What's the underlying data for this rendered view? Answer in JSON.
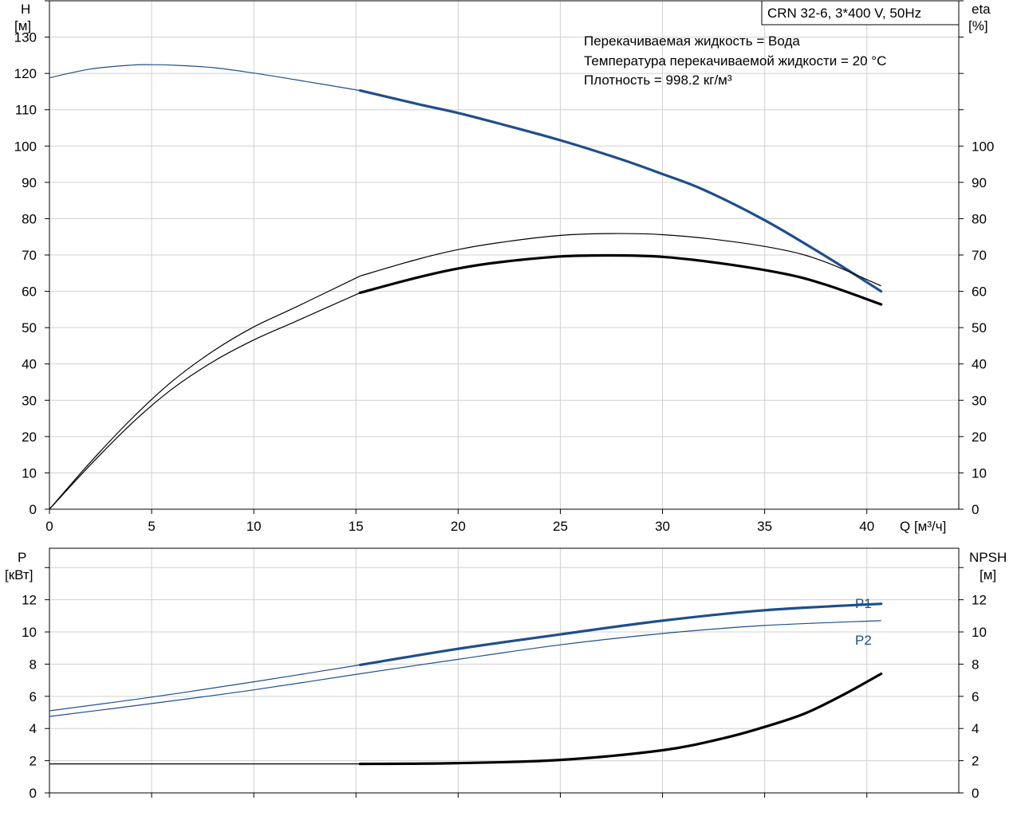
{
  "title_box": "CRN 32-6, 3*400 V, 50Hz",
  "info": {
    "line1": "Перекачиваемая жидкость = Вода",
    "line2": "Температура перекачиваемой жидкости = 20 °C",
    "line3": "Плотность = 998.2 кг/м³"
  },
  "colors": {
    "blue": "#1f4e8c",
    "black": "#000000",
    "grid": "#d0d0d0"
  },
  "chart_data": [
    {
      "type": "line",
      "name": "head-efficiency",
      "x_label": "Q [м³/ч]",
      "left_axis": {
        "label_top": "H",
        "label_unit": "[м]",
        "ticks": [
          0,
          10,
          20,
          30,
          40,
          50,
          60,
          70,
          80,
          90,
          100,
          110,
          120,
          130
        ],
        "range": [
          0,
          140
        ]
      },
      "right_axis": {
        "label_top": "eta",
        "label_unit": "[%]",
        "ticks": [
          0,
          10,
          20,
          30,
          40,
          50,
          60,
          70,
          80,
          90,
          100
        ],
        "range": [
          0,
          140
        ]
      },
      "x_ticks": [
        0,
        5,
        10,
        15,
        20,
        25,
        30,
        35,
        40
      ],
      "x_range": [
        0,
        44.5
      ],
      "series": [
        {
          "id": "H",
          "axis": "left",
          "color": "#1f4e8c",
          "thin": [
            [
              0,
              118.8
            ],
            [
              2,
              121.2
            ],
            [
              4,
              122.3
            ],
            [
              5,
              122.4
            ],
            [
              6,
              122.3
            ],
            [
              8,
              121.6
            ],
            [
              10,
              120.1
            ],
            [
              12,
              118.3
            ],
            [
              15.2,
              115.3
            ]
          ],
          "thick": [
            [
              15.2,
              115.3
            ],
            [
              18,
              111.6
            ],
            [
              20,
              109.1
            ],
            [
              22,
              106.2
            ],
            [
              25,
              101.6
            ],
            [
              28,
              96.3
            ],
            [
              30,
              92.3
            ],
            [
              32,
              88.0
            ],
            [
              35,
              79.6
            ],
            [
              38,
              69.6
            ],
            [
              40.7,
              60.0
            ]
          ]
        },
        {
          "id": "eta_pump",
          "axis": "right",
          "color": "#000000",
          "thin": [
            [
              0,
              0
            ],
            [
              2,
              12.9
            ],
            [
              4,
              24.8
            ],
            [
              6,
              35.2
            ],
            [
              8,
              43.5
            ],
            [
              10,
              50.2
            ],
            [
              12,
              55.5
            ],
            [
              15.2,
              64.2
            ]
          ],
          "thick": []
        },
        {
          "id": "eta_pump_upper",
          "axis": "right",
          "color": "#000000",
          "thin": [
            [
              15.2,
              64.2
            ],
            [
              18,
              68.8
            ],
            [
              20,
              71.5
            ],
            [
              22,
              73.4
            ],
            [
              25,
              75.4
            ],
            [
              27.5,
              75.9
            ],
            [
              30,
              75.6
            ],
            [
              33,
              74.0
            ],
            [
              36,
              71.3
            ],
            [
              38,
              68.0
            ],
            [
              40.7,
              61.5
            ]
          ],
          "thick": []
        },
        {
          "id": "eta_total",
          "axis": "right",
          "color": "#000000",
          "thin": [
            [
              0,
              0
            ],
            [
              2,
              12.2
            ],
            [
              4,
              23.5
            ],
            [
              6,
              33.1
            ],
            [
              8,
              40.6
            ],
            [
              10,
              46.6
            ],
            [
              12,
              51.6
            ],
            [
              15.2,
              59.6
            ]
          ],
          "thick": [
            [
              15.2,
              59.6
            ],
            [
              18,
              63.8
            ],
            [
              20,
              66.3
            ],
            [
              22,
              68.0
            ],
            [
              25,
              69.6
            ],
            [
              27.5,
              69.9
            ],
            [
              30,
              69.5
            ],
            [
              33,
              67.6
            ],
            [
              36,
              64.8
            ],
            [
              38,
              61.8
            ],
            [
              40.7,
              56.4
            ]
          ]
        }
      ]
    },
    {
      "type": "line",
      "name": "power-npsh",
      "left_axis": {
        "label_top": "P",
        "label_unit": "[кВт]",
        "ticks": [
          0,
          2,
          4,
          6,
          8,
          10,
          12
        ],
        "range": [
          0,
          15.2
        ]
      },
      "right_axis": {
        "label_top": "NPSH",
        "label_unit": "[м]",
        "ticks": [
          0,
          2,
          4,
          6,
          8,
          10,
          12
        ],
        "range": [
          0,
          15.2
        ]
      },
      "x_range": [
        0,
        44.5
      ],
      "series": [
        {
          "id": "P1",
          "name": "P1",
          "color": "#1f4e8c",
          "thin": [
            [
              0,
              5.1
            ],
            [
              5,
              5.95
            ],
            [
              10,
              6.9
            ],
            [
              15.2,
              7.95
            ]
          ],
          "thick": [
            [
              15.2,
              7.95
            ],
            [
              20,
              8.95
            ],
            [
              25,
              9.85
            ],
            [
              30,
              10.7
            ],
            [
              35,
              11.35
            ],
            [
              40.7,
              11.75
            ]
          ]
        },
        {
          "id": "P2",
          "name": "P2",
          "color": "#1f4e8c",
          "thin": [
            [
              0,
              4.75
            ],
            [
              5,
              5.55
            ],
            [
              10,
              6.4
            ],
            [
              15.2,
              7.4
            ],
            [
              20,
              8.3
            ],
            [
              25,
              9.2
            ],
            [
              30,
              9.9
            ],
            [
              35,
              10.4
            ],
            [
              40.7,
              10.7
            ]
          ],
          "thick": []
        },
        {
          "id": "NPSH",
          "color": "#000000",
          "thin": [
            [
              0,
              1.8
            ],
            [
              15.2,
              1.8
            ]
          ],
          "thick": [
            [
              15.2,
              1.8
            ],
            [
              20,
              1.85
            ],
            [
              25,
              2.05
            ],
            [
              30,
              2.65
            ],
            [
              33,
              3.4
            ],
            [
              35,
              4.1
            ],
            [
              37,
              4.95
            ],
            [
              39,
              6.2
            ],
            [
              40.7,
              7.4
            ]
          ]
        }
      ]
    }
  ]
}
